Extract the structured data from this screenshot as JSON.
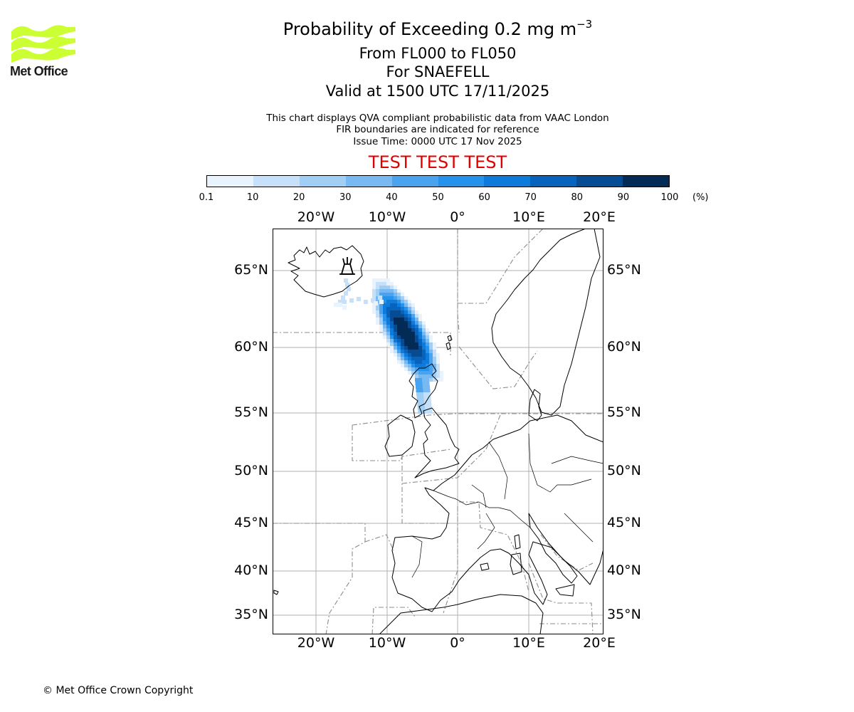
{
  "logo": {
    "text": "Met Office",
    "color": "#ccff33"
  },
  "title": {
    "main": "Probability of Exceeding 0.2 mg m",
    "superscript": "−3"
  },
  "subtitle": {
    "levels": "From FL000 to FL050",
    "volcano": "For SNAEFELL",
    "valid": "Valid at 1500 UTC 17/11/2025"
  },
  "notes": {
    "line1": "This chart displays QVA compliant probabilistic data from VAAC London",
    "line2": "FIR boundaries are indicated for reference",
    "line3": "Issue Time: 0000 UTC 17 Nov 2025"
  },
  "test_banner": "TEST TEST TEST",
  "colorbar": {
    "ticks": [
      "0.1",
      "10",
      "20",
      "30",
      "40",
      "50",
      "60",
      "70",
      "80",
      "90",
      "100"
    ],
    "unit": "(%)",
    "colors": [
      "#e9f3fd",
      "#c5e0f8",
      "#a1cef5",
      "#78b9f2",
      "#4aa3ee",
      "#2692ec",
      "#0e7ad9",
      "#0863bd",
      "#054c95",
      "#032b56"
    ]
  },
  "axes": {
    "lon_labels": [
      "20°W",
      "10°W",
      "0°",
      "10°E",
      "20°E"
    ],
    "lat_labels": [
      "65°N",
      "60°N",
      "55°N",
      "50°N",
      "45°N",
      "40°N",
      "35°N"
    ]
  },
  "footer": {
    "copyright": "© Met Office Crown Copyright"
  }
}
